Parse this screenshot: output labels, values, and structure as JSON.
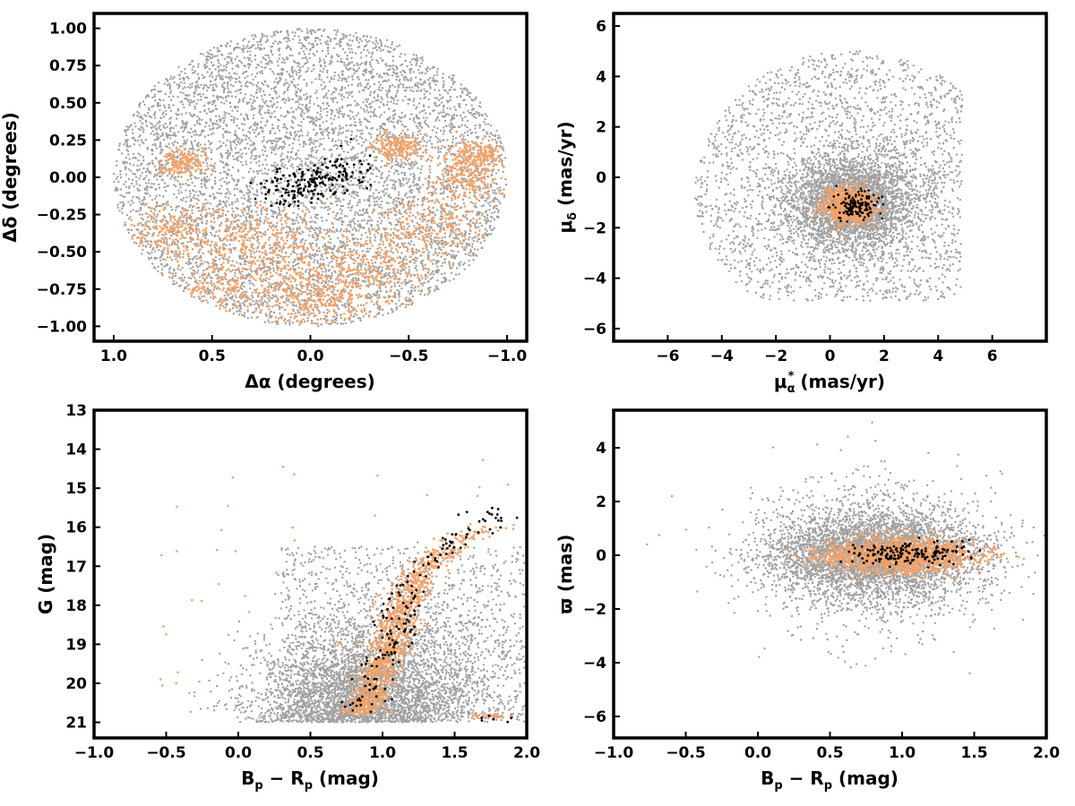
{
  "colors": {
    "field": "#a0a0a0",
    "candidate": "#f4a268",
    "member": "#000000",
    "frame": "#000000"
  },
  "chart_data": [
    {
      "type": "scatter",
      "id": "sky",
      "xlabel": "Δα (degrees)",
      "ylabel": "Δδ (degrees)",
      "xlim": [
        1.1,
        -1.1
      ],
      "ylim": [
        -1.1,
        1.1
      ],
      "x_inverted": true,
      "xticks": [
        1.0,
        0.5,
        0.0,
        -0.5,
        -1.0
      ],
      "xtick_labels": [
        "1.0",
        "0.5",
        "0.0",
        "−0.5",
        "−1.0"
      ],
      "yticks": [
        1.0,
        0.75,
        0.5,
        0.25,
        0.0,
        -0.25,
        -0.5,
        -0.75,
        -1.0
      ],
      "ytick_labels": [
        "1.00",
        "0.75",
        "0.50",
        "0.25",
        "0.00",
        "−0.25",
        "−0.50",
        "−0.75",
        "−1.00"
      ],
      "grid": false,
      "series": [
        {
          "role": "field",
          "color": "#a0a0a0",
          "distribution": "uniform disk",
          "center": [
            0,
            0
          ],
          "radius": 1.0
        },
        {
          "role": "candidate",
          "color": "#f4a268",
          "distribution": "clumps, concentrated in southern half of field",
          "center": [
            0.0,
            -0.6
          ],
          "spread": [
            0.55,
            0.3
          ]
        },
        {
          "role": "member",
          "color": "#000000",
          "distribution": "compact elongated group",
          "center": [
            -0.02,
            -0.03
          ],
          "spread": [
            0.22,
            0.09
          ],
          "xrange": [
            0.37,
            -0.32
          ],
          "yrange": [
            -0.22,
            0.28
          ]
        }
      ]
    },
    {
      "type": "scatter",
      "id": "proper-motion",
      "xlabel": "μα* (mas/yr)",
      "ylabel": "μδ (mas/yr)",
      "xlim": [
        -8.0,
        8.0
      ],
      "ylim": [
        -6.5,
        6.5
      ],
      "xticks": [
        -6,
        -4,
        -2,
        0,
        2,
        4,
        6
      ],
      "xtick_labels": [
        "−6",
        "−4",
        "−2",
        "0",
        "2",
        "4",
        "6"
      ],
      "yticks": [
        6,
        4,
        2,
        0,
        -2,
        -4,
        -6
      ],
      "ytick_labels": [
        "6",
        "4",
        "2",
        "0",
        "−2",
        "−4",
        "−6"
      ],
      "grid": false,
      "series": [
        {
          "role": "field",
          "color": "#a0a0a0",
          "distribution": "disk, dense core",
          "center": [
            0.8,
            -1.0
          ],
          "radius": 5.8,
          "xmax": 4.9
        },
        {
          "role": "candidate",
          "color": "#f4a268",
          "distribution": "compact clump",
          "center": [
            0.7,
            -1.1
          ],
          "spread": [
            0.45,
            0.35
          ]
        },
        {
          "role": "member",
          "color": "#000000",
          "distribution": "compact clump",
          "center": [
            1.0,
            -1.1
          ],
          "spread": [
            0.4,
            0.35
          ]
        }
      ]
    },
    {
      "type": "scatter",
      "id": "cmd",
      "xlabel": "Bp − Rp (mag)",
      "ylabel": "G (mag)",
      "xlim": [
        -1.0,
        2.0
      ],
      "ylim": [
        21.4,
        13.0
      ],
      "y_inverted": true,
      "xticks": [
        -1.0,
        -0.5,
        0.0,
        0.5,
        1.0,
        1.5,
        2.0
      ],
      "xtick_labels": [
        "−1.0",
        "−0.5",
        "0.0",
        "0.5",
        "1.0",
        "1.5",
        "2.0"
      ],
      "yticks": [
        21,
        20,
        19,
        18,
        17,
        16,
        15,
        14,
        13
      ],
      "ytick_labels": [
        "21",
        "20",
        "19",
        "18",
        "17",
        "16",
        "15",
        "14",
        "13"
      ],
      "grid": false,
      "sequence": [
        [
          0.85,
          20.8
        ],
        [
          0.95,
          20.0
        ],
        [
          1.05,
          19.0
        ],
        [
          1.15,
          18.0
        ],
        [
          1.3,
          17.0
        ],
        [
          1.55,
          16.3
        ],
        [
          1.75,
          16.0
        ]
      ],
      "series": [
        {
          "role": "field",
          "color": "#a0a0a0",
          "distribution": "broad band below G 21 plus sequence",
          "x_center": 0.8,
          "g_limit": 21.0
        },
        {
          "role": "candidate",
          "color": "#f4a268",
          "distribution": "along main sequence"
        },
        {
          "role": "member",
          "color": "#000000",
          "distribution": "along main sequence, sparse"
        }
      ]
    },
    {
      "type": "scatter",
      "id": "parallax",
      "xlabel": "Bp − Rp (mag)",
      "ylabel": "ϖ (mas)",
      "xlim": [
        -1.0,
        2.0
      ],
      "ylim": [
        -6.8,
        5.4
      ],
      "xticks": [
        -1.0,
        -0.5,
        0.0,
        0.5,
        1.0,
        1.5,
        2.0
      ],
      "xtick_labels": [
        "−1.0",
        "−0.5",
        "0.0",
        "0.5",
        "1.0",
        "1.5",
        "2.0"
      ],
      "yticks": [
        4,
        2,
        0,
        -2,
        -4,
        -6
      ],
      "ytick_labels": [
        "4",
        "2",
        "0",
        "−2",
        "−4",
        "−6"
      ],
      "grid": false,
      "series": [
        {
          "role": "field",
          "color": "#a0a0a0",
          "distribution": "horizontal band around 0",
          "center": [
            0.8,
            0.0
          ],
          "spread": [
            0.35,
            0.9
          ]
        },
        {
          "role": "candidate",
          "color": "#f4a268",
          "distribution": "tight band around 0",
          "center": [
            1.0,
            0.0
          ],
          "spread": [
            0.25,
            0.28
          ]
        },
        {
          "role": "member",
          "color": "#000000",
          "distribution": "tight band around 0",
          "center": [
            1.05,
            0.05
          ],
          "spread": [
            0.2,
            0.22
          ]
        }
      ]
    }
  ]
}
